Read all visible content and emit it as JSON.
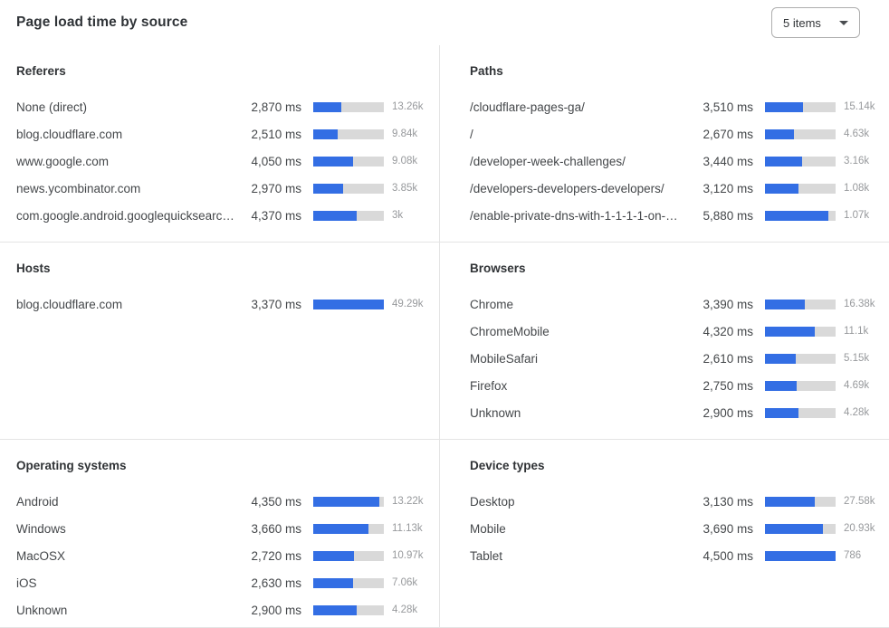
{
  "header": {
    "title": "Page load time by source",
    "items_dropdown": {
      "value": "5 items"
    }
  },
  "colors": {
    "bar_fill": "#336ee4",
    "bar_track": "#d9d9d9"
  },
  "panels": [
    {
      "title": "Referers",
      "rows": [
        {
          "label": "None (direct)",
          "ms": "2,870 ms",
          "count": "13.26k",
          "pct": 40
        },
        {
          "label": "blog.cloudflare.com",
          "ms": "2,510 ms",
          "count": "9.84k",
          "pct": 35
        },
        {
          "label": "www.google.com",
          "ms": "4,050 ms",
          "count": "9.08k",
          "pct": 57
        },
        {
          "label": "news.ycombinator.com",
          "ms": "2,970 ms",
          "count": "3.85k",
          "pct": 42
        },
        {
          "label": "com.google.android.googlequicksearc…",
          "ms": "4,370 ms",
          "count": "3k",
          "pct": 61
        }
      ]
    },
    {
      "title": "Paths",
      "rows": [
        {
          "label": "/cloudflare-pages-ga/",
          "ms": "3,510 ms",
          "count": "15.14k",
          "pct": 54
        },
        {
          "label": "/",
          "ms": "2,670 ms",
          "count": "4.63k",
          "pct": 41
        },
        {
          "label": "/developer-week-challenges/",
          "ms": "3,440 ms",
          "count": "3.16k",
          "pct": 53
        },
        {
          "label": "/developers-developers-developers/",
          "ms": "3,120 ms",
          "count": "1.08k",
          "pct": 48
        },
        {
          "label": "/enable-private-dns-with-1-1-1-1-on-…",
          "ms": "5,880 ms",
          "count": "1.07k",
          "pct": 90
        }
      ]
    },
    {
      "title": "Hosts",
      "rows": [
        {
          "label": "blog.cloudflare.com",
          "ms": "3,370 ms",
          "count": "49.29k",
          "pct": 100
        }
      ]
    },
    {
      "title": "Browsers",
      "rows": [
        {
          "label": "Chrome",
          "ms": "3,390 ms",
          "count": "16.38k",
          "pct": 56
        },
        {
          "label": "ChromeMobile",
          "ms": "4,320 ms",
          "count": "11.1k",
          "pct": 71
        },
        {
          "label": "MobileSafari",
          "ms": "2,610 ms",
          "count": "5.15k",
          "pct": 43
        },
        {
          "label": "Firefox",
          "ms": "2,750 ms",
          "count": "4.69k",
          "pct": 45
        },
        {
          "label": "Unknown",
          "ms": "2,900 ms",
          "count": "4.28k",
          "pct": 48
        }
      ]
    },
    {
      "title": "Operating systems",
      "rows": [
        {
          "label": "Android",
          "ms": "4,350 ms",
          "count": "13.22k",
          "pct": 93
        },
        {
          "label": "Windows",
          "ms": "3,660 ms",
          "count": "11.13k",
          "pct": 78
        },
        {
          "label": "MacOSX",
          "ms": "2,720 ms",
          "count": "10.97k",
          "pct": 58
        },
        {
          "label": "iOS",
          "ms": "2,630 ms",
          "count": "7.06k",
          "pct": 56
        },
        {
          "label": "Unknown",
          "ms": "2,900 ms",
          "count": "4.28k",
          "pct": 62
        }
      ]
    },
    {
      "title": "Device types",
      "rows": [
        {
          "label": "Desktop",
          "ms": "3,130 ms",
          "count": "27.58k",
          "pct": 70
        },
        {
          "label": "Mobile",
          "ms": "3,690 ms",
          "count": "20.93k",
          "pct": 82
        },
        {
          "label": "Tablet",
          "ms": "4,500 ms",
          "count": "786",
          "pct": 100
        }
      ]
    }
  ]
}
